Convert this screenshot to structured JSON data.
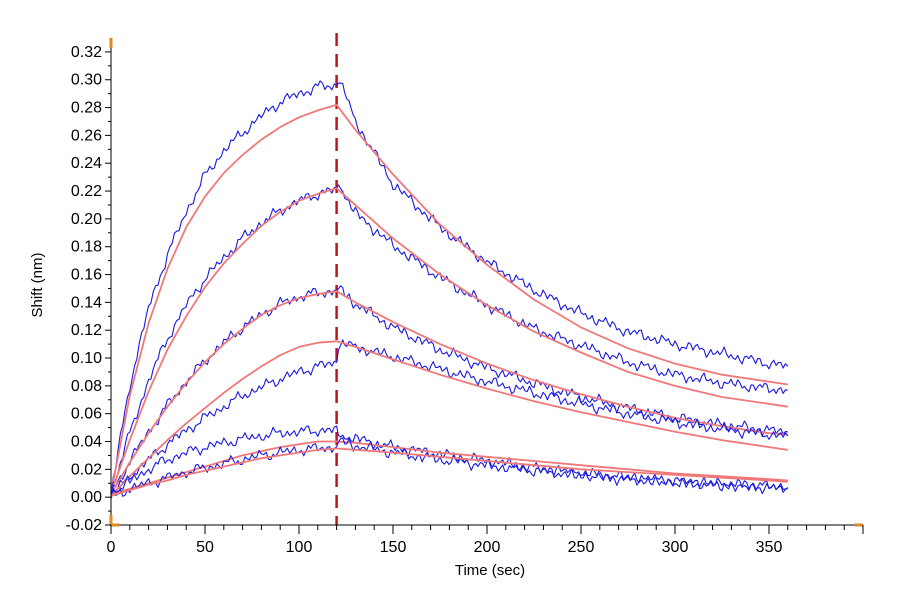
{
  "chart_data": {
    "type": "line",
    "title": "",
    "xlabel": "Time (sec)",
    "ylabel": "Shift (nm)",
    "xlim": [
      0,
      400
    ],
    "ylim": [
      -0.02,
      0.33
    ],
    "x_ticks": [
      0,
      50,
      100,
      150,
      200,
      250,
      300,
      350
    ],
    "x_tick_labels": [
      "0",
      "50",
      "100",
      "150",
      "200",
      "250",
      "300",
      "350"
    ],
    "y_ticks": [
      -0.02,
      0.0,
      0.02,
      0.04,
      0.06,
      0.08,
      0.1,
      0.12,
      0.14,
      0.16,
      0.18,
      0.2,
      0.22,
      0.24,
      0.26,
      0.28,
      0.3,
      0.32
    ],
    "y_tick_labels": [
      "-0.02",
      "0.00",
      "0.02",
      "0.04",
      "0.06",
      "0.08",
      "0.10",
      "0.12",
      "0.14",
      "0.16",
      "0.18",
      "0.20",
      "0.22",
      "0.24",
      "0.26",
      "0.28",
      "0.30",
      "0.32"
    ],
    "grid": false,
    "marker_line": {
      "x": 120,
      "color": "#c0141c",
      "style": "dashed"
    },
    "colors": {
      "measured": "#1a1ae0",
      "fit": "#f07878",
      "axis_accent": "#e08a1e"
    },
    "series": [
      {
        "kind": "measured",
        "x": [
          0,
          10,
          20,
          30,
          40,
          50,
          60,
          70,
          80,
          90,
          100,
          110,
          120,
          121,
          130,
          150,
          175,
          200,
          225,
          250,
          275,
          300,
          325,
          350,
          360
        ],
        "values": [
          0.003,
          0.081,
          0.136,
          0.174,
          0.205,
          0.231,
          0.249,
          0.262,
          0.274,
          0.284,
          0.29,
          0.295,
          0.296,
          0.302,
          0.27,
          0.225,
          0.194,
          0.169,
          0.149,
          0.132,
          0.119,
          0.11,
          0.103,
          0.096,
          0.094
        ]
      },
      {
        "kind": "fit",
        "x": [
          0,
          10,
          20,
          30,
          40,
          50,
          60,
          70,
          80,
          90,
          100,
          110,
          120,
          130,
          150,
          175,
          200,
          225,
          250,
          275,
          300,
          325,
          350,
          360
        ],
        "values": [
          0.003,
          0.073,
          0.125,
          0.164,
          0.194,
          0.216,
          0.233,
          0.246,
          0.257,
          0.266,
          0.273,
          0.278,
          0.282,
          0.264,
          0.232,
          0.196,
          0.167,
          0.142,
          0.122,
          0.107,
          0.096,
          0.088,
          0.083,
          0.081
        ]
      },
      {
        "kind": "measured",
        "x": [
          0,
          10,
          20,
          30,
          40,
          50,
          60,
          70,
          80,
          90,
          100,
          110,
          120,
          121,
          130,
          150,
          175,
          200,
          225,
          250,
          275,
          300,
          325,
          350,
          360
        ],
        "values": [
          0.004,
          0.046,
          0.084,
          0.114,
          0.138,
          0.157,
          0.172,
          0.186,
          0.197,
          0.206,
          0.213,
          0.218,
          0.221,
          0.226,
          0.204,
          0.181,
          0.158,
          0.138,
          0.121,
          0.109,
          0.097,
          0.088,
          0.082,
          0.078,
          0.077
        ]
      },
      {
        "kind": "fit",
        "x": [
          0,
          10,
          20,
          30,
          40,
          50,
          60,
          70,
          80,
          90,
          100,
          110,
          120,
          130,
          150,
          175,
          200,
          225,
          250,
          275,
          300,
          325,
          350,
          360
        ],
        "values": [
          0.003,
          0.041,
          0.076,
          0.106,
          0.13,
          0.151,
          0.168,
          0.182,
          0.195,
          0.205,
          0.213,
          0.218,
          0.222,
          0.21,
          0.186,
          0.16,
          0.138,
          0.119,
          0.104,
          0.09,
          0.08,
          0.072,
          0.067,
          0.065
        ]
      },
      {
        "kind": "measured",
        "x": [
          0,
          10,
          20,
          30,
          40,
          50,
          60,
          70,
          80,
          90,
          100,
          110,
          120,
          121,
          130,
          150,
          175,
          200,
          225,
          250,
          275,
          300,
          325,
          350,
          360
        ],
        "values": [
          0.002,
          0.026,
          0.047,
          0.066,
          0.083,
          0.098,
          0.111,
          0.122,
          0.131,
          0.139,
          0.144,
          0.147,
          0.148,
          0.15,
          0.139,
          0.122,
          0.106,
          0.093,
          0.082,
          0.072,
          0.064,
          0.057,
          0.052,
          0.048,
          0.047
        ]
      },
      {
        "kind": "fit",
        "x": [
          0,
          10,
          20,
          30,
          40,
          50,
          60,
          70,
          80,
          90,
          100,
          110,
          120,
          130,
          150,
          175,
          200,
          225,
          250,
          275,
          300,
          325,
          350,
          360
        ],
        "values": [
          0.002,
          0.025,
          0.046,
          0.065,
          0.082,
          0.097,
          0.11,
          0.121,
          0.131,
          0.138,
          0.143,
          0.146,
          0.148,
          0.14,
          0.126,
          0.11,
          0.096,
          0.084,
          0.074,
          0.065,
          0.057,
          0.051,
          0.046,
          0.045
        ]
      },
      {
        "kind": "measured",
        "x": [
          0,
          10,
          20,
          30,
          40,
          50,
          60,
          70,
          80,
          90,
          100,
          110,
          120,
          121,
          130,
          150,
          175,
          200,
          225,
          250,
          275,
          300,
          325,
          350,
          360
        ],
        "values": [
          0.001,
          0.014,
          0.027,
          0.038,
          0.048,
          0.057,
          0.065,
          0.073,
          0.079,
          0.085,
          0.09,
          0.094,
          0.097,
          0.111,
          0.108,
          0.101,
          0.092,
          0.083,
          0.075,
          0.067,
          0.06,
          0.054,
          0.049,
          0.045,
          0.044
        ]
      },
      {
        "kind": "fit",
        "x": [
          0,
          10,
          20,
          30,
          40,
          50,
          60,
          70,
          80,
          90,
          100,
          110,
          120,
          130,
          150,
          175,
          200,
          225,
          250,
          275,
          300,
          325,
          350,
          360
        ],
        "values": [
          0.001,
          0.015,
          0.028,
          0.041,
          0.053,
          0.064,
          0.075,
          0.085,
          0.094,
          0.102,
          0.108,
          0.111,
          0.112,
          0.108,
          0.099,
          0.088,
          0.078,
          0.069,
          0.061,
          0.054,
          0.047,
          0.041,
          0.036,
          0.034
        ]
      },
      {
        "kind": "measured",
        "x": [
          0,
          10,
          20,
          30,
          40,
          50,
          60,
          70,
          80,
          90,
          100,
          110,
          120,
          121,
          130,
          150,
          175,
          200,
          225,
          250,
          275,
          300,
          325,
          350,
          360
        ],
        "values": [
          0.002,
          0.012,
          0.02,
          0.027,
          0.032,
          0.036,
          0.039,
          0.042,
          0.044,
          0.046,
          0.047,
          0.048,
          0.048,
          0.045,
          0.042,
          0.036,
          0.031,
          0.026,
          0.021,
          0.017,
          0.014,
          0.011,
          0.009,
          0.008,
          0.007
        ]
      },
      {
        "kind": "fit",
        "x": [
          0,
          10,
          20,
          30,
          40,
          50,
          60,
          70,
          80,
          90,
          100,
          110,
          120,
          130,
          150,
          175,
          200,
          225,
          250,
          275,
          300,
          325,
          350,
          360
        ],
        "values": [
          0.002,
          0.006,
          0.01,
          0.014,
          0.018,
          0.022,
          0.026,
          0.03,
          0.033,
          0.036,
          0.038,
          0.04,
          0.04,
          0.039,
          0.036,
          0.032,
          0.029,
          0.026,
          0.023,
          0.02,
          0.017,
          0.015,
          0.013,
          0.012
        ]
      },
      {
        "kind": "measured",
        "x": [
          0,
          10,
          20,
          30,
          40,
          50,
          60,
          70,
          80,
          90,
          100,
          110,
          120,
          121,
          130,
          150,
          175,
          200,
          225,
          250,
          275,
          300,
          325,
          350,
          360
        ],
        "values": [
          0.001,
          0.006,
          0.01,
          0.014,
          0.018,
          0.021,
          0.024,
          0.027,
          0.03,
          0.032,
          0.034,
          0.035,
          0.036,
          0.04,
          0.037,
          0.032,
          0.027,
          0.023,
          0.019,
          0.016,
          0.013,
          0.011,
          0.009,
          0.007,
          0.006
        ]
      },
      {
        "kind": "fit",
        "x": [
          0,
          10,
          20,
          30,
          40,
          50,
          60,
          70,
          80,
          90,
          100,
          110,
          120,
          130,
          150,
          175,
          200,
          225,
          250,
          275,
          300,
          325,
          350,
          360
        ],
        "values": [
          0.001,
          0.005,
          0.009,
          0.012,
          0.016,
          0.019,
          0.022,
          0.025,
          0.028,
          0.03,
          0.032,
          0.034,
          0.035,
          0.034,
          0.032,
          0.029,
          0.026,
          0.023,
          0.02,
          0.018,
          0.016,
          0.014,
          0.012,
          0.011
        ]
      }
    ]
  }
}
